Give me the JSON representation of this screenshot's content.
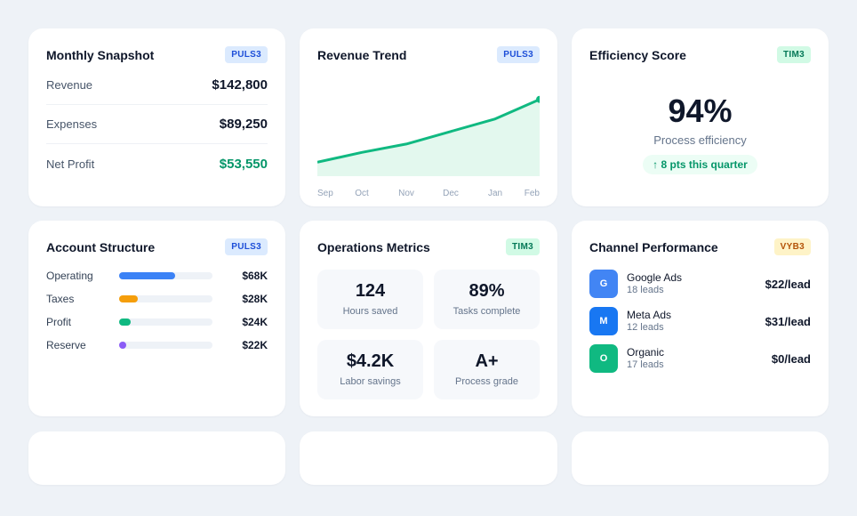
{
  "snapshot": {
    "title": "Monthly Snapshot",
    "badge": "PULS3",
    "rows": [
      {
        "label": "Revenue",
        "value": "$142,800"
      },
      {
        "label": "Expenses",
        "value": "$89,250"
      },
      {
        "label": "Net Profit",
        "value": "$53,550"
      }
    ]
  },
  "revenue_trend": {
    "title": "Revenue Trend",
    "badge": "PULS3",
    "line_color": "#10b981",
    "fill_color": "#e3f8ee"
  },
  "chart_data": {
    "type": "area",
    "title": "Revenue Trend",
    "categories": [
      "Sep",
      "Oct",
      "Nov",
      "Dec",
      "Jan",
      "Feb"
    ],
    "values": [
      10,
      17,
      23,
      32,
      41,
      55
    ],
    "ylim": [
      0,
      65
    ],
    "grid": false,
    "legend": "none"
  },
  "efficiency": {
    "title": "Efficiency Score",
    "badge": "TIM3",
    "value": "94%",
    "subtitle": "Process efficiency",
    "change": "↑ 8 pts this quarter"
  },
  "account": {
    "title": "Account Structure",
    "badge": "PULS3",
    "rows": [
      {
        "label": "Operating",
        "value": "$68K",
        "fill": 0.6,
        "color": "#3b82f6"
      },
      {
        "label": "Taxes",
        "value": "$28K",
        "fill": 0.2,
        "color": "#f59e0b"
      },
      {
        "label": "Profit",
        "value": "$24K",
        "fill": 0.12,
        "color": "#10b981"
      },
      {
        "label": "Reserve",
        "value": "$22K",
        "fill": 0.08,
        "color": "#8b5cf6"
      }
    ]
  },
  "operations": {
    "title": "Operations Metrics",
    "badge": "TIM3",
    "tiles": [
      {
        "value": "124",
        "label": "Hours saved"
      },
      {
        "value": "89%",
        "label": "Tasks complete"
      },
      {
        "value": "$4.2K",
        "label": "Labor savings"
      },
      {
        "value": "A+",
        "label": "Process grade"
      }
    ]
  },
  "channels": {
    "title": "Channel Performance",
    "badge": "VYB3",
    "rows": [
      {
        "initial": "G",
        "name": "Google Ads",
        "leads": "18 leads",
        "cost": "$22/lead",
        "color": "#4285f4"
      },
      {
        "initial": "M",
        "name": "Meta Ads",
        "leads": "12 leads",
        "cost": "$31/lead",
        "color": "#1877f2"
      },
      {
        "initial": "O",
        "name": "Organic",
        "leads": "17 leads",
        "cost": "$0/lead",
        "color": "#10b981"
      }
    ]
  }
}
